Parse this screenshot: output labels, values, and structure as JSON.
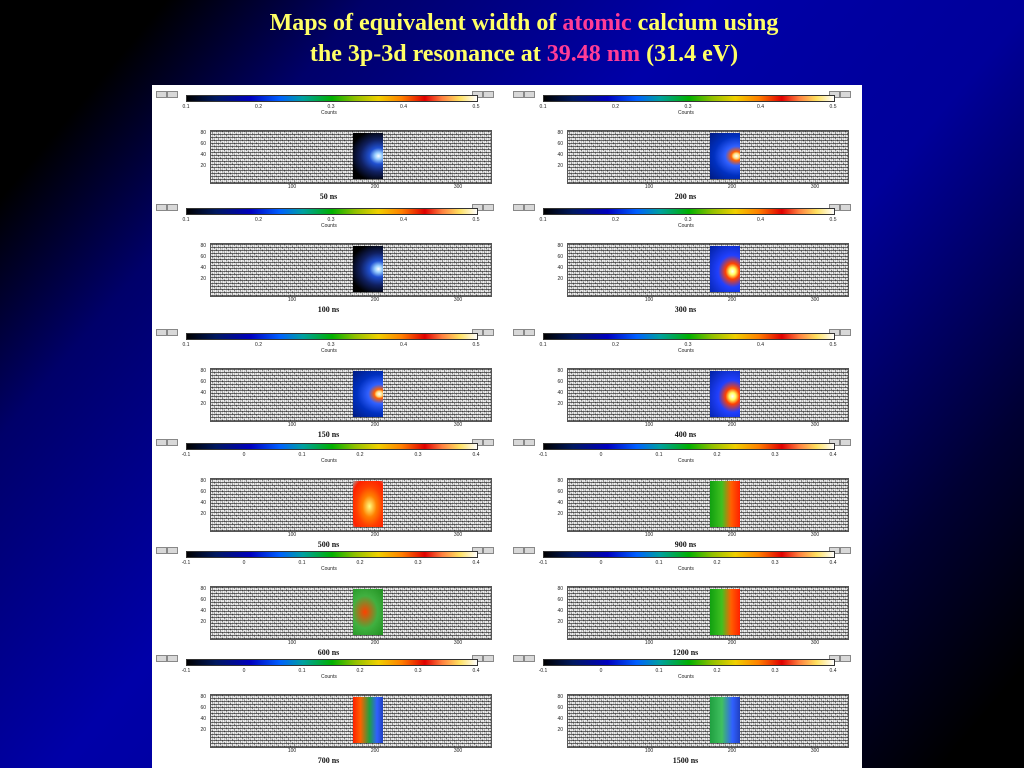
{
  "title": {
    "line1_pre": "Maps of equivalent width of ",
    "line1_hl": "atomic",
    "line1_post": " calcium using",
    "line2_pre": "the 3p-3d resonance at ",
    "line2_hl": "39.48 nm",
    "line2_post": " (31.4 eV)"
  },
  "colors": {
    "title": "#ffff66",
    "highlight": "#ff3c96",
    "figure_background": "#ffffff"
  },
  "icons": [
    "toolbar-icon"
  ],
  "figure": {
    "scale_label": "Counts",
    "y_ticks": [
      "80",
      "60",
      "40",
      "20"
    ],
    "x_ticks": [
      "100",
      "200",
      "300"
    ],
    "panels": [
      {
        "time": "50 ns",
        "scale_ticks": [
          "0.1",
          "0.2",
          "0.3",
          "0.4",
          "0.5"
        ],
        "style": "dark"
      },
      {
        "time": "200 ns",
        "scale_ticks": [
          "0.1",
          "0.2",
          "0.3",
          "0.4",
          "0.5"
        ],
        "style": "blue-edge"
      },
      {
        "time": "100 ns",
        "scale_ticks": [
          "0.1",
          "0.2",
          "0.3",
          "0.4",
          "0.5"
        ],
        "style": "dark"
      },
      {
        "time": "300 ns",
        "scale_ticks": [
          "0.1",
          "0.2",
          "0.3",
          "0.4",
          "0.5"
        ],
        "style": "blue-core"
      },
      {
        "time": "150 ns",
        "scale_ticks": [
          "0.1",
          "0.2",
          "0.3",
          "0.4",
          "0.5"
        ],
        "style": "blue-edge"
      },
      {
        "time": "400 ns",
        "scale_ticks": [
          "0.1",
          "0.2",
          "0.3",
          "0.4",
          "0.5"
        ],
        "style": "blue-core"
      },
      {
        "time": "500 ns",
        "scale_ticks": [
          "-0.1",
          "0",
          "0.1",
          "0.2",
          "0.3",
          "0.4"
        ],
        "style": "orange"
      },
      {
        "time": "900 ns",
        "scale_ticks": [
          "-0.1",
          "0",
          "0.1",
          "0.2",
          "0.3",
          "0.4"
        ],
        "style": "green-red"
      },
      {
        "time": "600 ns",
        "scale_ticks": [
          "-0.1",
          "0",
          "0.1",
          "0.2",
          "0.3",
          "0.4"
        ],
        "style": "red-green"
      },
      {
        "time": "1200 ns",
        "scale_ticks": [
          "-0.1",
          "0",
          "0.1",
          "0.2",
          "0.3",
          "0.4"
        ],
        "style": "green-red"
      },
      {
        "time": "700 ns",
        "scale_ticks": [
          "-0.1",
          "0",
          "0.1",
          "0.2",
          "0.3",
          "0.4"
        ],
        "style": "red-blue"
      },
      {
        "time": "1500 ns",
        "scale_ticks": [
          "-0.1",
          "0",
          "0.1",
          "0.2",
          "0.3",
          "0.4"
        ],
        "style": "green-blue"
      }
    ]
  }
}
